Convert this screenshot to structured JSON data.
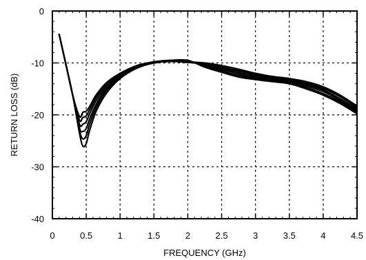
{
  "chart_data": {
    "type": "line",
    "title": "",
    "xlabel": "FREQUENCY (GHz)",
    "ylabel": "RETURN LOSS (dB)",
    "xlim": [
      0,
      4.5
    ],
    "ylim": [
      -40,
      0
    ],
    "x_ticks": [
      "0",
      "0.5",
      "1",
      "1.5",
      "2",
      "2.5",
      "3",
      "3.5",
      "4",
      "4.5"
    ],
    "y_ticks": [
      "0",
      "-10",
      "-20",
      "-30",
      "-40"
    ],
    "grid": "dashed",
    "legend": "none",
    "line_color": "#000000",
    "series": [
      {
        "x": [
          0.1,
          0.2,
          0.3,
          0.4,
          0.45,
          0.5,
          0.55,
          0.65,
          0.8,
          1.0,
          1.25,
          1.5,
          1.75,
          2.0,
          2.25,
          2.5,
          2.75,
          3.0,
          3.25,
          3.5,
          3.75,
          4.0,
          4.25,
          4.5
        ],
        "y": [
          -4.5,
          -10.3,
          -16.2,
          -23.5,
          -26.0,
          -25.5,
          -23.0,
          -19.2,
          -15.8,
          -13.0,
          -11.0,
          -10.0,
          -9.7,
          -9.8,
          -10.0,
          -10.5,
          -11.2,
          -12.0,
          -12.6,
          -13.0,
          -13.6,
          -14.6,
          -16.2,
          -18.3
        ]
      },
      {
        "x": [
          0.1,
          0.2,
          0.3,
          0.4,
          0.45,
          0.5,
          0.55,
          0.65,
          0.8,
          1.0,
          1.25,
          1.5,
          1.75,
          2.0,
          2.25,
          2.5,
          2.75,
          3.0,
          3.25,
          3.5,
          3.75,
          4.0,
          4.25,
          4.5
        ],
        "y": [
          -4.5,
          -10.3,
          -16.2,
          -23.0,
          -24.6,
          -24.0,
          -21.8,
          -18.5,
          -15.3,
          -12.8,
          -10.9,
          -10.0,
          -9.7,
          -9.9,
          -10.2,
          -10.8,
          -11.5,
          -12.2,
          -12.8,
          -13.2,
          -13.9,
          -14.9,
          -16.5,
          -18.6
        ]
      },
      {
        "x": [
          0.1,
          0.2,
          0.3,
          0.4,
          0.45,
          0.5,
          0.55,
          0.65,
          0.8,
          1.0,
          1.25,
          1.5,
          1.75,
          2.0,
          2.25,
          2.5,
          2.75,
          3.0,
          3.25,
          3.5,
          3.75,
          4.0,
          4.25,
          4.5
        ],
        "y": [
          -4.5,
          -10.3,
          -16.2,
          -22.5,
          -23.2,
          -22.6,
          -20.8,
          -17.9,
          -14.9,
          -12.6,
          -10.8,
          -9.9,
          -9.6,
          -9.8,
          -10.3,
          -11.0,
          -11.8,
          -12.5,
          -13.0,
          -13.4,
          -14.1,
          -15.2,
          -16.9,
          -18.9
        ]
      },
      {
        "x": [
          0.1,
          0.2,
          0.3,
          0.4,
          0.45,
          0.5,
          0.55,
          0.65,
          0.8,
          1.0,
          1.25,
          1.5,
          1.75,
          2.0,
          2.25,
          2.5,
          2.75,
          3.0,
          3.25,
          3.5,
          3.75,
          4.0,
          4.25,
          4.5
        ],
        "y": [
          -4.5,
          -10.3,
          -16.2,
          -21.8,
          -21.8,
          -21.3,
          -19.8,
          -17.2,
          -14.5,
          -12.4,
          -10.7,
          -9.9,
          -9.6,
          -9.7,
          -10.4,
          -11.2,
          -12.1,
          -12.8,
          -13.2,
          -13.6,
          -14.4,
          -15.5,
          -17.2,
          -19.2
        ]
      },
      {
        "x": [
          0.1,
          0.2,
          0.3,
          0.4,
          0.45,
          0.5,
          0.55,
          0.65,
          0.8,
          1.0,
          1.25,
          1.5,
          1.75,
          2.0,
          2.25,
          2.5,
          2.75,
          3.0,
          3.25,
          3.5,
          3.75,
          4.0,
          4.25,
          4.5
        ],
        "y": [
          -4.5,
          -10.3,
          -16.2,
          -21.0,
          -20.5,
          -20.2,
          -19.0,
          -16.6,
          -14.1,
          -12.2,
          -10.6,
          -9.8,
          -9.5,
          -9.6,
          -10.6,
          -11.5,
          -12.4,
          -13.0,
          -13.4,
          -13.8,
          -14.7,
          -15.9,
          -17.5,
          -19.5
        ]
      },
      {
        "x": [
          0.1,
          0.2,
          0.3,
          0.4,
          0.45,
          0.5,
          0.55,
          0.65,
          0.8,
          1.0,
          1.25,
          1.5,
          1.75,
          2.0,
          2.25,
          2.5,
          2.75,
          3.0,
          3.25,
          3.5,
          3.75,
          4.0,
          4.25,
          4.5
        ],
        "y": [
          -4.5,
          -10.3,
          -16.2,
          -20.3,
          -19.5,
          -19.3,
          -18.4,
          -16.1,
          -13.8,
          -12.0,
          -10.5,
          -9.8,
          -9.5,
          -9.5,
          -10.8,
          -11.8,
          -12.7,
          -13.2,
          -13.6,
          -14.0,
          -15.0,
          -16.2,
          -17.8,
          -19.8
        ]
      }
    ]
  }
}
